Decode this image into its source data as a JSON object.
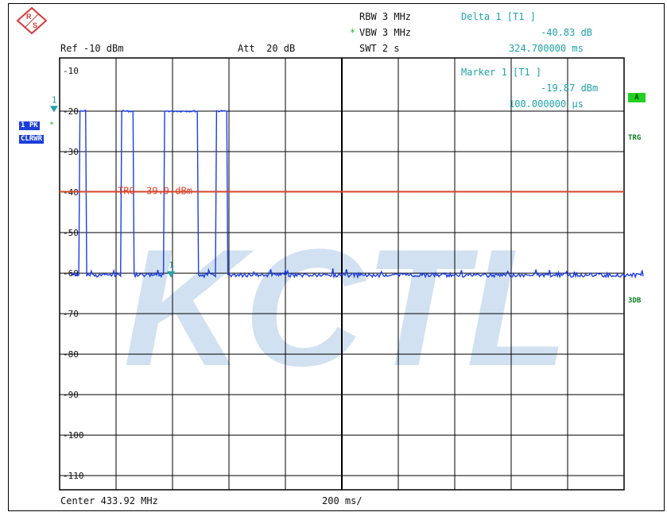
{
  "header": {
    "rbw": "RBW 3 MHz",
    "vbw_star": "*",
    "vbw": "VBW 3 MHz",
    "swt": "SWT 2 s",
    "ref": "Ref -10 dBm",
    "att": "Att  20 dB",
    "delta_title": "Delta 1 [T1 ]",
    "delta_value": "-40.83 dB",
    "delta_time": "324.700000 ms",
    "marker_title": "Marker 1 [T1 ]",
    "marker_value": "-19.87 dBm",
    "marker_time": "100.000000 µs"
  },
  "left_badges": {
    "trace_mode": "1 PK",
    "trace_star": "*",
    "trace_type": "CLRWR"
  },
  "right_labels": {
    "a": "A",
    "trg": "TRG",
    "db3": "3DB"
  },
  "trigger_line": {
    "label": "TRG -39.9 dBm",
    "level": -39.9
  },
  "watermark": "KCTL",
  "footer": {
    "center": "Center 433.92 MHz",
    "span": "200 ms/"
  },
  "colors": {
    "trace": "#1d3ee6",
    "trigger": "#d6452a",
    "marker": "#1fa3a8",
    "watermark": "#c9dcef"
  },
  "chart_data": {
    "type": "line",
    "ylabel": "",
    "y_ticks": [
      "-10",
      "-20",
      "-30",
      "-40",
      "-50",
      "-60",
      "-70",
      "-80",
      "-90",
      "-100",
      "-110"
    ],
    "ylim": [
      -115,
      -10
    ],
    "xlim_ms": [
      0,
      2000
    ],
    "x_per_div": "200 ms/",
    "grid": true,
    "series": [
      {
        "pulses_ms": [
          [
            0,
            25
          ],
          [
            150,
            190
          ],
          [
            300,
            420
          ],
          [
            485,
            525
          ]
        ],
        "pulse_level_dbm": -20,
        "noise_floor_dbm": -60.5
      }
    ],
    "markers": [
      {
        "label": "1",
        "x_ms": 0.1,
        "y_dbm": -19.87
      },
      {
        "label": "1",
        "x_ms": 324.7,
        "y_dbm": -60.7
      }
    ]
  }
}
